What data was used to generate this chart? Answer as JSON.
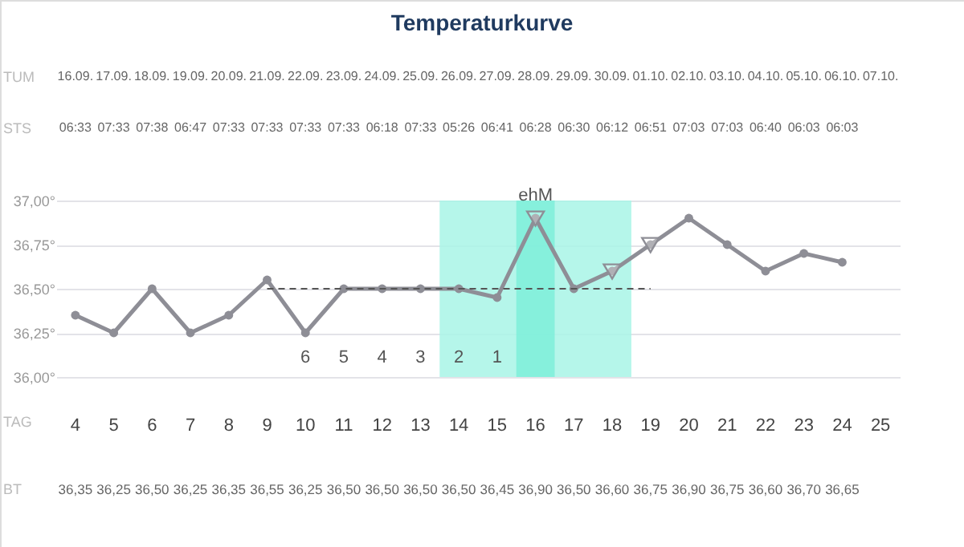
{
  "chart_data": {
    "type": "line",
    "title": "Temperaturkurve",
    "xlabel": "TAG",
    "categories": [
      "4",
      "5",
      "6",
      "7",
      "8",
      "9",
      "10",
      "11",
      "12",
      "13",
      "14",
      "15",
      "16",
      "17",
      "18",
      "19",
      "20",
      "21",
      "22",
      "23",
      "24",
      "25"
    ],
    "series": [
      {
        "color": "#8e8e96",
        "marker": "circle",
        "line_style": "solid",
        "values": [
          36.35,
          36.25,
          36.5,
          36.25,
          36.35,
          36.55,
          36.25,
          36.5,
          36.5,
          36.5,
          36.5,
          36.45,
          36.9,
          36.5,
          36.6,
          36.75,
          36.9,
          36.75,
          36.6,
          36.7,
          36.65,
          null
        ],
        "value_labels": [
          "36,35",
          "36,25",
          "36,50",
          "36,25",
          "36,35",
          "36,55",
          "36,25",
          "36,50",
          "36,50",
          "36,50",
          "36,50",
          "36,45",
          "36,90",
          "36,50",
          "36,60",
          "36,75",
          "36,90",
          "36,75",
          "36,60",
          "36,70",
          "36,65",
          null
        ]
      },
      {
        "type": "scatter",
        "marker": "triangle",
        "color": "#8e8e96",
        "x": [
          "16",
          "18",
          "19"
        ],
        "values": [
          36.9,
          36.6,
          36.75
        ]
      },
      {
        "type": "line",
        "line_style": "dashed",
        "marker": "none",
        "color": "#555555",
        "x": [
          "9",
          "19"
        ],
        "values": [
          36.5,
          36.5
        ]
      }
    ],
    "ylim": [
      36.0,
      37.0
    ],
    "yticks": [
      {
        "value": 36.0,
        "label": "36,00°"
      },
      {
        "value": 36.25,
        "label": "36,25°"
      },
      {
        "value": 36.5,
        "label": "36,50°"
      },
      {
        "value": 36.75,
        "label": "36,75°"
      },
      {
        "value": 37.0,
        "label": "37,00°"
      }
    ],
    "grid": "y",
    "bands": [
      {
        "axis": "x",
        "from": "14",
        "to": "18",
        "color": "#a8f5e6"
      },
      {
        "axis": "x",
        "from": "16",
        "to": "16",
        "color": "#7eefd9"
      }
    ],
    "annotations": [
      "16.09.",
      "17.09.",
      "18.09.",
      "19.09.",
      "20.09.",
      "21.09.",
      "22.09.",
      "23.09.",
      "24.09.",
      "25.09.",
      "26.09.",
      "27.09.",
      "28.09.",
      "29.09.",
      "30.09.",
      "01.10.",
      "02.10.",
      "03.10.",
      "04.10.",
      "05.10.",
      "06.10.",
      "07.10.",
      "06:33",
      "07:33",
      "07:38",
      "06:47",
      "07:33",
      "07:33",
      "07:33",
      "07:33",
      "06:18",
      "07:33",
      "05:26",
      "06:41",
      "06:28",
      "06:30",
      "06:12",
      "06:51",
      "07:03",
      "07:03",
      "06:40",
      "06:03",
      "06:03",
      "TUM",
      "STS",
      "BT",
      "6",
      "5",
      "4",
      "3",
      "2",
      "1",
      {
        "text": "ehM",
        "x": "16",
        "y": 36.9
      }
    ]
  }
}
